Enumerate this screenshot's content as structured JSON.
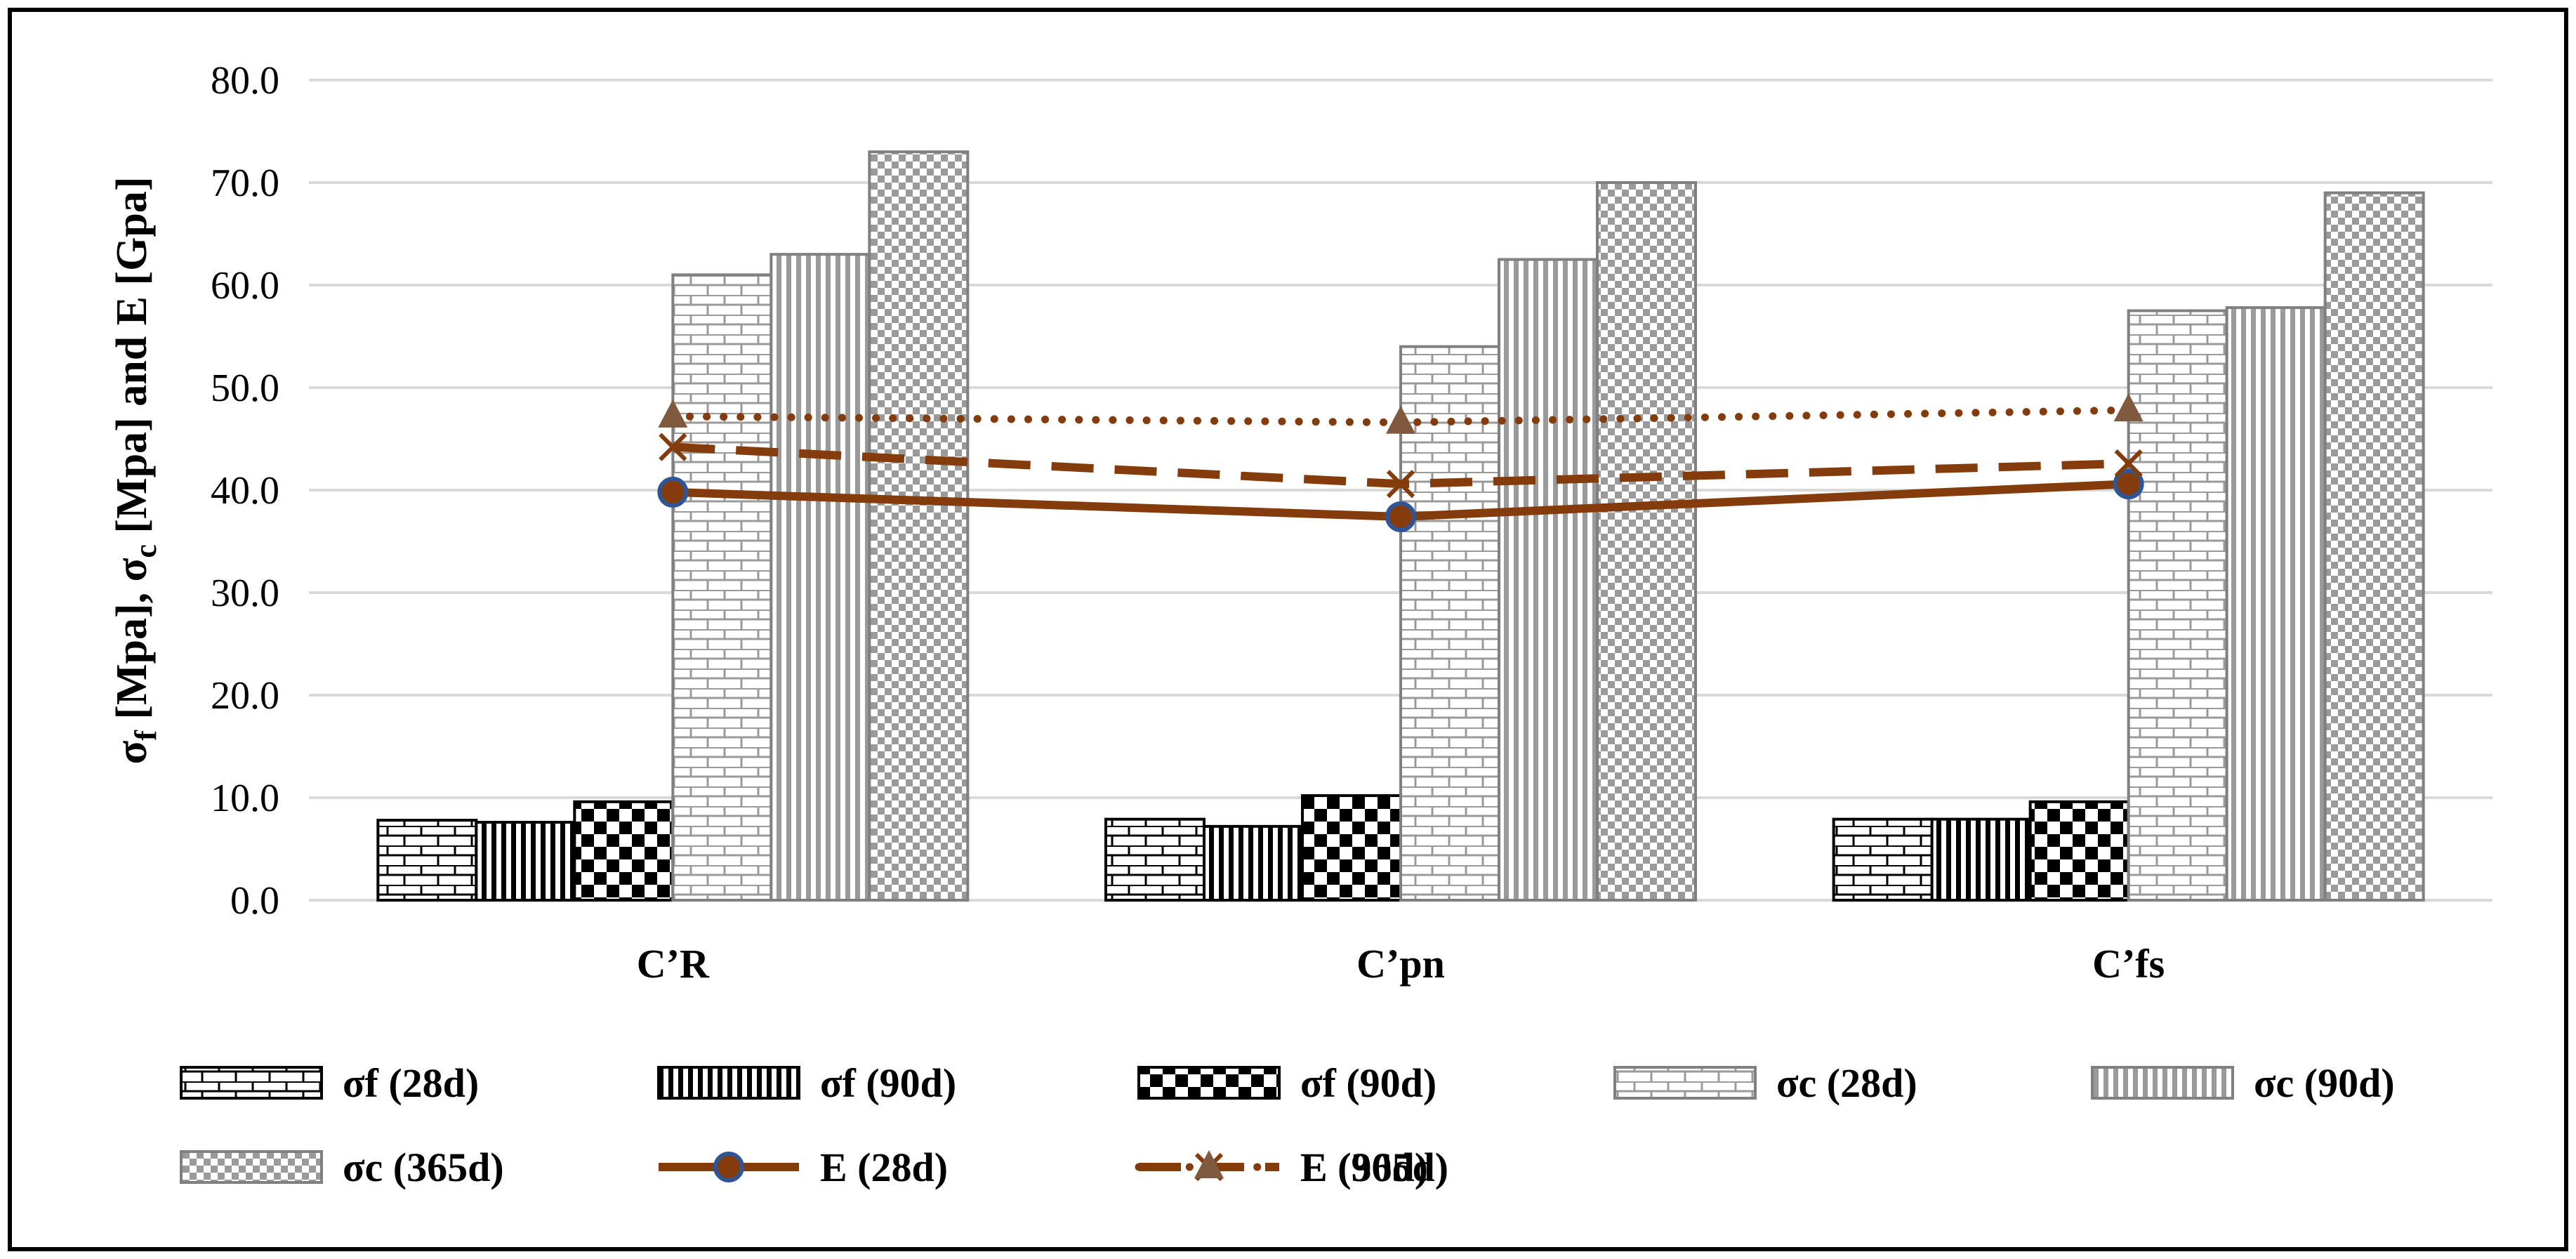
{
  "chart_data": {
    "type": "bar",
    "title": "",
    "xlabel": "",
    "ylabel": {
      "sigma": "σ",
      "sub_f": "f",
      "part1": " [Mpa], ",
      "sub_c": "c",
      "part2": " [Mpa] and E [Gpa]"
    },
    "ylim": [
      0,
      80
    ],
    "yticks": [
      "0.0",
      "10.0",
      "20.0",
      "30.0",
      "40.0",
      "50.0",
      "60.0",
      "70.0",
      "80.0"
    ],
    "grid": true,
    "legend_position": "bottom",
    "categories": [
      "C’R",
      "C’pn",
      "C’fs"
    ],
    "series": [
      {
        "name": "σf (28d)",
        "kind": "bar",
        "pattern": "brick-black",
        "values": [
          7.8,
          7.9,
          7.9
        ]
      },
      {
        "name": "σf (90d)",
        "kind": "bar",
        "pattern": "vertical-black",
        "values": [
          7.6,
          7.2,
          7.9
        ]
      },
      {
        "name": "σf (90d)",
        "kind": "bar",
        "pattern": "checker-black",
        "values": [
          9.6,
          10.2,
          9.6
        ]
      },
      {
        "name": "σc (28d)",
        "kind": "bar",
        "pattern": "brick-gray",
        "values": [
          61.0,
          54.0,
          57.5
        ]
      },
      {
        "name": "σc (90d)",
        "kind": "bar",
        "pattern": "vertical-gray",
        "values": [
          63.0,
          62.5,
          57.8
        ]
      },
      {
        "name": "σc (365d)",
        "kind": "bar",
        "pattern": "checker-gray",
        "values": [
          73.0,
          70.0,
          69.0
        ]
      },
      {
        "name": "E (28d)",
        "kind": "line",
        "style": "solid",
        "marker": "circle",
        "values": [
          39.8,
          37.4,
          40.6
        ]
      },
      {
        "name": "E (90d)",
        "kind": "line",
        "style": "dashed",
        "marker": "x",
        "values": [
          44.2,
          40.6,
          42.6
        ]
      },
      {
        "name": "E (365d)",
        "kind": "line",
        "style": "dotted",
        "marker": "triangle",
        "values": [
          47.2,
          46.6,
          47.8
        ]
      }
    ],
    "colors": {
      "line": "#843C0C",
      "circle_fill": "#843C0C",
      "circle_stroke": "#2F5597",
      "triangle_fill": "#7F5A3F",
      "gray_bar": "#808080",
      "black_bar": "#000000",
      "grid": "#D9D9D9"
    }
  }
}
